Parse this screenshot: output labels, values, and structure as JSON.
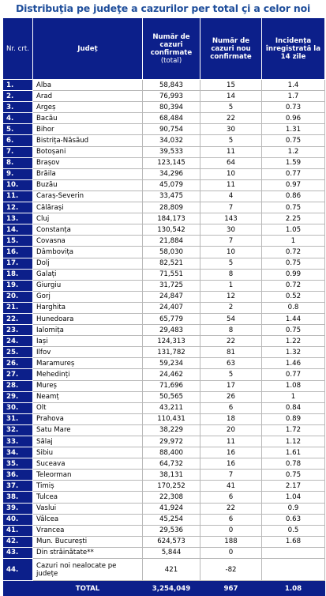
{
  "title": "Distribuţia pe judeţe a cazurilor per total çi a celor noi",
  "headers": {
    "nr": "Nr. crt.",
    "judet": "Județ",
    "total": "Număr de cazuri confirmate",
    "total_sub": "(total)",
    "noi": "Număr de cazuri nou confirmate",
    "incidenta": "Incidența înregistrată la 14 zile"
  },
  "rows": [
    {
      "nr": "1.",
      "judet": "Alba",
      "total": "58,843",
      "noi": "15",
      "inc": "1.4"
    },
    {
      "nr": "2.",
      "judet": "Arad",
      "total": "76,993",
      "noi": "14",
      "inc": "1.7"
    },
    {
      "nr": "3.",
      "judet": "Argeș",
      "total": "80,394",
      "noi": "5",
      "inc": "0.73"
    },
    {
      "nr": "4.",
      "judet": "Bacău",
      "total": "68,484",
      "noi": "22",
      "inc": "0.96"
    },
    {
      "nr": "5.",
      "judet": "Bihor",
      "total": "90,754",
      "noi": "30",
      "inc": "1.31"
    },
    {
      "nr": "6.",
      "judet": "Bistrița-Năsăud",
      "total": "34,032",
      "noi": "5",
      "inc": "0.75"
    },
    {
      "nr": "7.",
      "judet": "Botoșani",
      "total": "39,533",
      "noi": "11",
      "inc": "1.2"
    },
    {
      "nr": "8.",
      "judet": "Brașov",
      "total": "123,145",
      "noi": "64",
      "inc": "1.59"
    },
    {
      "nr": "9.",
      "judet": "Brăila",
      "total": "34,296",
      "noi": "10",
      "inc": "0.77"
    },
    {
      "nr": "10.",
      "judet": "Buzău",
      "total": "45,079",
      "noi": "11",
      "inc": "0.97"
    },
    {
      "nr": "11.",
      "judet": "Caraș-Severin",
      "total": "33,475",
      "noi": "4",
      "inc": "0.86"
    },
    {
      "nr": "12.",
      "judet": "Călărași",
      "total": "28,809",
      "noi": "7",
      "inc": "0.75"
    },
    {
      "nr": "13.",
      "judet": "Cluj",
      "total": "184,173",
      "noi": "143",
      "inc": "2.25"
    },
    {
      "nr": "14.",
      "judet": "Constanța",
      "total": "130,542",
      "noi": "30",
      "inc": "1.05"
    },
    {
      "nr": "15.",
      "judet": "Covasna",
      "total": "21,884",
      "noi": "7",
      "inc": "1"
    },
    {
      "nr": "16.",
      "judet": "Dâmbovița",
      "total": "58,030",
      "noi": "10",
      "inc": "0.72"
    },
    {
      "nr": "17.",
      "judet": "Dolj",
      "total": "82,521",
      "noi": "5",
      "inc": "0.75"
    },
    {
      "nr": "18.",
      "judet": "Galați",
      "total": "71,551",
      "noi": "8",
      "inc": "0.99"
    },
    {
      "nr": "19.",
      "judet": "Giurgiu",
      "total": "31,725",
      "noi": "1",
      "inc": "0.72"
    },
    {
      "nr": "20.",
      "judet": "Gorj",
      "total": "24,847",
      "noi": "12",
      "inc": "0.52"
    },
    {
      "nr": "21.",
      "judet": "Harghita",
      "total": "24,407",
      "noi": "2",
      "inc": "0.8"
    },
    {
      "nr": "22.",
      "judet": "Hunedoara",
      "total": "65,779",
      "noi": "54",
      "inc": "1.44"
    },
    {
      "nr": "23.",
      "judet": "Ialomița",
      "total": "29,483",
      "noi": "8",
      "inc": "0.75"
    },
    {
      "nr": "24.",
      "judet": "Iași",
      "total": "124,313",
      "noi": "22",
      "inc": "1.22"
    },
    {
      "nr": "25.",
      "judet": "Ilfov",
      "total": "131,782",
      "noi": "81",
      "inc": "1.32"
    },
    {
      "nr": "26.",
      "judet": "Maramureș",
      "total": "59,234",
      "noi": "63",
      "inc": "1.46"
    },
    {
      "nr": "27.",
      "judet": "Mehedinți",
      "total": "24,462",
      "noi": "5",
      "inc": "0.77"
    },
    {
      "nr": "28.",
      "judet": "Mureș",
      "total": "71,696",
      "noi": "17",
      "inc": "1.08"
    },
    {
      "nr": "29.",
      "judet": "Neamț",
      "total": "50,565",
      "noi": "26",
      "inc": "1"
    },
    {
      "nr": "30.",
      "judet": "Olt",
      "total": "43,211",
      "noi": "6",
      "inc": "0.84"
    },
    {
      "nr": "31.",
      "judet": "Prahova",
      "total": "110,431",
      "noi": "18",
      "inc": "0.89"
    },
    {
      "nr": "32.",
      "judet": "Satu Mare",
      "total": "38,229",
      "noi": "20",
      "inc": "1.72"
    },
    {
      "nr": "33.",
      "judet": "Sălaj",
      "total": "29,972",
      "noi": "11",
      "inc": "1.12"
    },
    {
      "nr": "34.",
      "judet": "Sibiu",
      "total": "88,400",
      "noi": "16",
      "inc": "1.61"
    },
    {
      "nr": "35.",
      "judet": "Suceava",
      "total": "64,732",
      "noi": "16",
      "inc": "0.78"
    },
    {
      "nr": "36.",
      "judet": "Teleorman",
      "total": "38,131",
      "noi": "7",
      "inc": "0.75"
    },
    {
      "nr": "37.",
      "judet": "Timiș",
      "total": "170,252",
      "noi": "41",
      "inc": "2.17"
    },
    {
      "nr": "38.",
      "judet": "Tulcea",
      "total": "22,308",
      "noi": "6",
      "inc": "1.04"
    },
    {
      "nr": "39.",
      "judet": "Vaslui",
      "total": "41,924",
      "noi": "22",
      "inc": "0.9"
    },
    {
      "nr": "40.",
      "judet": "Vâlcea",
      "total": "45,254",
      "noi": "6",
      "inc": "0.63"
    },
    {
      "nr": "41.",
      "judet": "Vrancea",
      "total": "29,536",
      "noi": "0",
      "inc": "0.5"
    },
    {
      "nr": "42.",
      "judet": "Mun. București",
      "total": "624,573",
      "noi": "188",
      "inc": "1.68"
    },
    {
      "nr": "43.",
      "judet": "Din străinătate**",
      "total": "5,844",
      "noi": "0",
      "inc": ""
    },
    {
      "nr": "44.",
      "judet": "Cazuri noi nealocate pe județe",
      "total": "421",
      "noi": "-82",
      "inc": "",
      "tall": true
    }
  ],
  "total_row": {
    "label": "TOTAL",
    "total": "3,254,049",
    "noi": "967",
    "inc": "1.08"
  },
  "colors": {
    "header_bg": "#0c1f8a",
    "title": "#1f4e9b",
    "grid": "#b8b8b8"
  }
}
